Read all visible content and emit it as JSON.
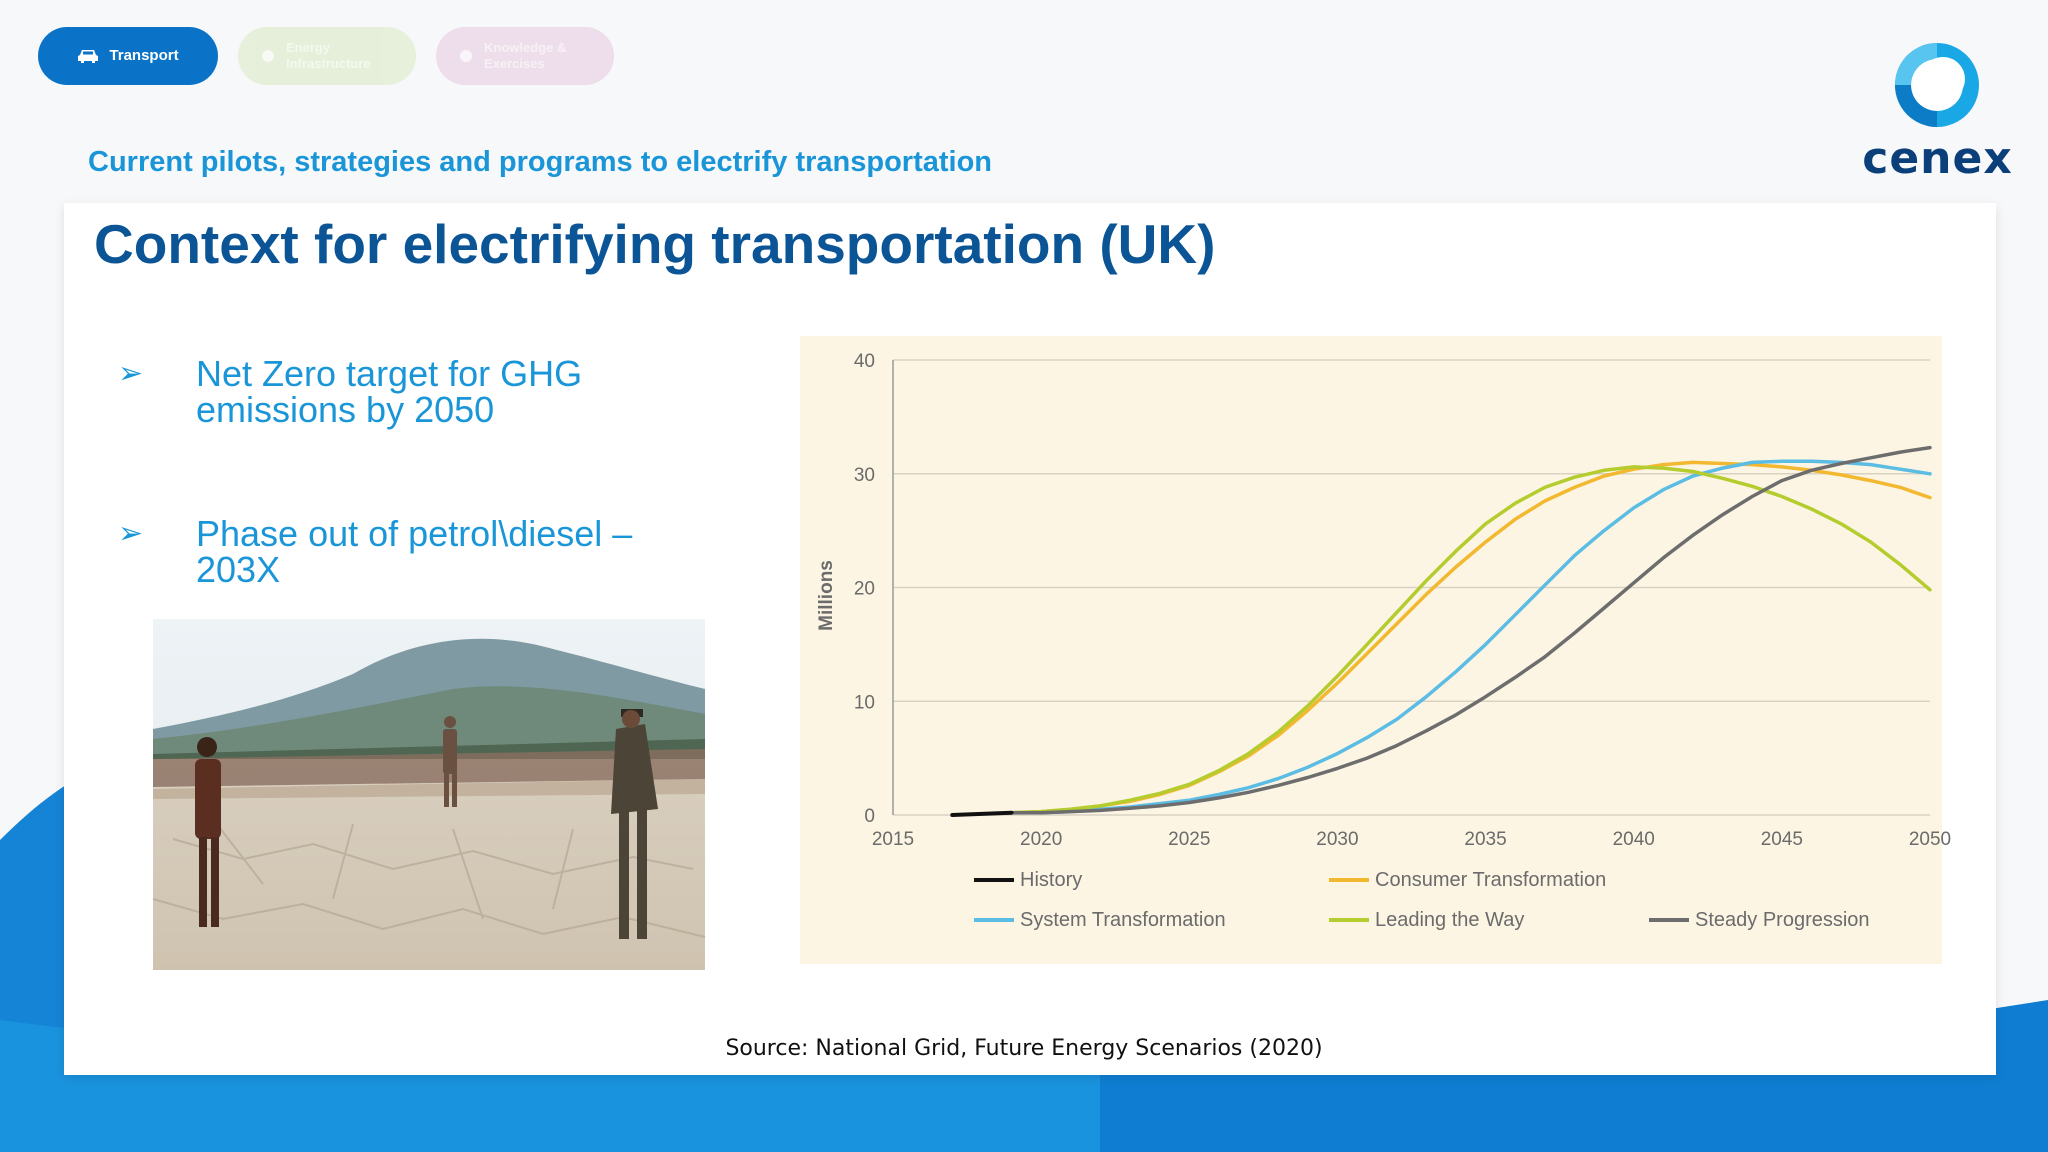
{
  "nav": {
    "tabs": [
      {
        "label": "Transport",
        "icon": "car-icon",
        "color": "#0a73c7"
      },
      {
        "label": "Energy Infrastructure",
        "icon": "energy-icon",
        "color": "#e5efd9"
      },
      {
        "label": "Knowledge & Exercises",
        "icon": "knowledge-icon",
        "color": "#eedcea"
      }
    ]
  },
  "header": {
    "subtitle": "Current pilots, strategies and programs to electrify transportation",
    "logo_text": "cenex"
  },
  "slide": {
    "title": "Context for electrifying transportation (UK)",
    "bullets": [
      {
        "marker": "➢",
        "text": "Net Zero target for GHG emissions by 2050"
      },
      {
        "marker": "➢",
        "text": "Phase out of petrol\\diesel – 203X"
      }
    ],
    "source": "Source: National Grid, Future Energy Scenarios (2020)"
  },
  "chart_data": {
    "type": "line",
    "title": "",
    "xlabel": "",
    "ylabel": "Millions",
    "xlim": [
      2015,
      2050
    ],
    "ylim": [
      0,
      40
    ],
    "x_ticks": [
      2015,
      2020,
      2025,
      2030,
      2035,
      2040,
      2045,
      2050
    ],
    "y_ticks": [
      0,
      10,
      20,
      30,
      40
    ],
    "grid": "horizontal",
    "legend_position": "bottom",
    "series": [
      {
        "name": "History",
        "color": "#111111",
        "x": [
          2017,
          2018,
          2019
        ],
        "y": [
          0.0,
          0.1,
          0.2
        ]
      },
      {
        "name": "Consumer Transformation",
        "color": "#f2b830",
        "x": [
          2019,
          2020,
          2021,
          2022,
          2023,
          2024,
          2025,
          2026,
          2027,
          2028,
          2029,
          2030,
          2031,
          2032,
          2033,
          2034,
          2035,
          2036,
          2037,
          2038,
          2039,
          2040,
          2041,
          2042,
          2043,
          2044,
          2045,
          2046,
          2047,
          2048,
          2049,
          2050
        ],
        "y": [
          0.2,
          0.3,
          0.5,
          0.8,
          1.2,
          1.8,
          2.6,
          3.8,
          5.2,
          7.0,
          9.2,
          11.6,
          14.2,
          16.8,
          19.4,
          21.8,
          24.0,
          26.0,
          27.6,
          28.8,
          29.8,
          30.4,
          30.8,
          31.0,
          30.9,
          30.8,
          30.6,
          30.3,
          29.9,
          29.4,
          28.8,
          27.9
        ]
      },
      {
        "name": "System Transformation",
        "color": "#5bbce4",
        "x": [
          2019,
          2020,
          2021,
          2022,
          2023,
          2024,
          2025,
          2026,
          2027,
          2028,
          2029,
          2030,
          2031,
          2032,
          2033,
          2034,
          2035,
          2036,
          2037,
          2038,
          2039,
          2040,
          2041,
          2042,
          2043,
          2044,
          2045,
          2046,
          2047,
          2048,
          2049,
          2050
        ],
        "y": [
          0.2,
          0.2,
          0.3,
          0.5,
          0.7,
          1.0,
          1.3,
          1.8,
          2.4,
          3.2,
          4.2,
          5.4,
          6.8,
          8.4,
          10.4,
          12.6,
          15.0,
          17.6,
          20.2,
          22.8,
          25.0,
          27.0,
          28.6,
          29.8,
          30.5,
          31.0,
          31.1,
          31.1,
          31.0,
          30.8,
          30.4,
          30.0
        ]
      },
      {
        "name": "Leading the Way",
        "color": "#b5cc2e",
        "x": [
          2019,
          2020,
          2021,
          2022,
          2023,
          2024,
          2025,
          2026,
          2027,
          2028,
          2029,
          2030,
          2031,
          2032,
          2033,
          2034,
          2035,
          2036,
          2037,
          2038,
          2039,
          2040,
          2041,
          2042,
          2043,
          2044,
          2045,
          2046,
          2047,
          2048,
          2049,
          2050
        ],
        "y": [
          0.2,
          0.3,
          0.5,
          0.8,
          1.3,
          1.9,
          2.7,
          3.9,
          5.4,
          7.3,
          9.6,
          12.2,
          15.0,
          17.8,
          20.6,
          23.2,
          25.6,
          27.4,
          28.8,
          29.7,
          30.3,
          30.6,
          30.5,
          30.2,
          29.6,
          28.9,
          28.0,
          26.9,
          25.6,
          24.0,
          22.0,
          19.8
        ]
      },
      {
        "name": "Steady Progression",
        "color": "#6d6d6d",
        "x": [
          2019,
          2020,
          2021,
          2022,
          2023,
          2024,
          2025,
          2026,
          2027,
          2028,
          2029,
          2030,
          2031,
          2032,
          2033,
          2034,
          2035,
          2036,
          2037,
          2038,
          2039,
          2040,
          2041,
          2042,
          2043,
          2044,
          2045,
          2046,
          2047,
          2048,
          2049,
          2050
        ],
        "y": [
          0.2,
          0.2,
          0.3,
          0.4,
          0.6,
          0.8,
          1.1,
          1.5,
          2.0,
          2.6,
          3.3,
          4.1,
          5.0,
          6.1,
          7.4,
          8.8,
          10.4,
          12.1,
          13.9,
          16.0,
          18.2,
          20.4,
          22.6,
          24.6,
          26.4,
          28.0,
          29.4,
          30.3,
          30.9,
          31.4,
          31.9,
          32.3
        ]
      }
    ]
  }
}
